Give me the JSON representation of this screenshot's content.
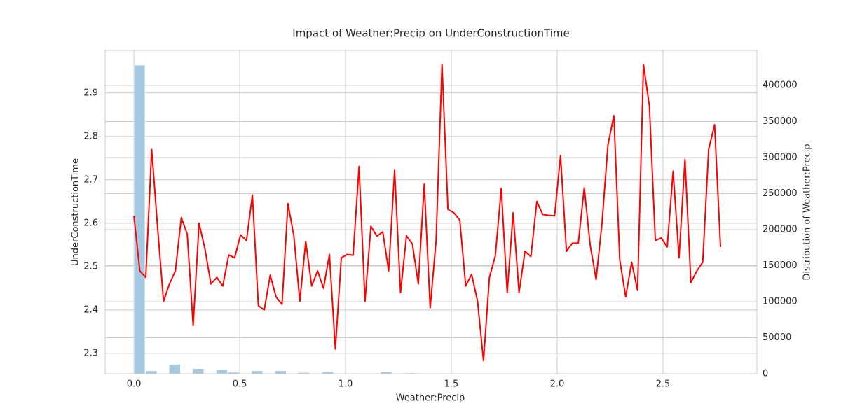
{
  "chart_data": {
    "type": "line",
    "title": "Impact of Weather:Precip on UnderConstructionTime",
    "xlabel": "Weather:Precip",
    "ylabel": "UnderConstructionTime",
    "y2label": "Distribution of Weather:Precip",
    "color": "#ff0000",
    "x": [
      0,
      0.028,
      0.056,
      0.084,
      0.112,
      0.14,
      0.168,
      0.196,
      0.224,
      0.252,
      0.28,
      0.308,
      0.336,
      0.364,
      0.392,
      0.42,
      0.448,
      0.476,
      0.504,
      0.532,
      0.56,
      0.588,
      0.616,
      0.644,
      0.672,
      0.7,
      0.728,
      0.756,
      0.784,
      0.812,
      0.84,
      0.868,
      0.896,
      0.924,
      0.952,
      0.98,
      1.008,
      1.036,
      1.064,
      1.092,
      1.12,
      1.148,
      1.176,
      1.204,
      1.232,
      1.26,
      1.288,
      1.316,
      1.344,
      1.372,
      1.4,
      1.428,
      1.456,
      1.484,
      1.512,
      1.54,
      1.568,
      1.596,
      1.624,
      1.652,
      1.68,
      1.708,
      1.736,
      1.764,
      1.792,
      1.82,
      1.848,
      1.876,
      1.904,
      1.932,
      1.96,
      1.988,
      2.016,
      2.044,
      2.072,
      2.1,
      2.128,
      2.156,
      2.184,
      2.212,
      2.24,
      2.268,
      2.296,
      2.324,
      2.352,
      2.38,
      2.408,
      2.436,
      2.464,
      2.492,
      2.52,
      2.548,
      2.576,
      2.604,
      2.632,
      2.66,
      2.688,
      2.716,
      2.744,
      2.772
    ],
    "values": [
      2.617,
      2.49,
      2.475,
      2.77,
      2.59,
      2.42,
      2.46,
      2.49,
      2.613,
      2.575,
      2.364,
      2.6,
      2.54,
      2.46,
      2.475,
      2.455,
      2.527,
      2.52,
      2.573,
      2.56,
      2.665,
      2.41,
      2.4,
      2.48,
      2.43,
      2.413,
      2.645,
      2.57,
      2.42,
      2.558,
      2.455,
      2.49,
      2.45,
      2.528,
      2.31,
      2.52,
      2.528,
      2.526,
      2.731,
      2.42,
      2.593,
      2.57,
      2.58,
      2.49,
      2.722,
      2.44,
      2.571,
      2.552,
      2.46,
      2.69,
      2.405,
      2.56,
      2.965,
      2.632,
      2.624,
      2.607,
      2.455,
      2.482,
      2.42,
      2.283,
      2.475,
      2.525,
      2.68,
      2.44,
      2.624,
      2.44,
      2.535,
      2.523,
      2.65,
      2.62,
      2.618,
      2.617,
      2.756,
      2.535,
      2.554,
      2.554,
      2.682,
      2.55,
      2.47,
      2.6,
      2.78,
      2.848,
      2.515,
      2.43,
      2.51,
      2.445,
      2.965,
      2.87,
      2.56,
      2.566,
      2.545,
      2.72,
      2.52,
      2.747,
      2.463,
      2.49,
      2.51,
      2.77,
      2.827,
      2.545
    ],
    "histogram": {
      "type": "histogram",
      "axis": "y2",
      "color": "#a5c8e1",
      "bins": [
        0,
        0.0556,
        0.1112,
        0.1668,
        0.2224,
        0.278,
        0.3336,
        0.3892,
        0.4448,
        0.5004,
        0.556,
        0.6116,
        0.6672,
        0.7228,
        0.7784,
        0.834,
        0.8896,
        0.9452,
        1.0008,
        1.0564,
        1.112,
        1.1676,
        1.2232,
        1.2788,
        1.3344,
        1.39,
        1.4456,
        1.5012,
        1.5568,
        1.6124,
        1.668,
        1.7236,
        1.7792,
        1.8348,
        1.8904,
        1.946,
        2.0016,
        2.0572,
        2.1128,
        2.1684,
        2.224,
        2.2796,
        2.3352,
        2.3908,
        2.4464,
        2.502,
        2.5576,
        2.6132,
        2.6688,
        2.7244,
        2.78
      ],
      "counts": [
        428000,
        4000,
        0,
        13000,
        0,
        7000,
        0,
        6000,
        2000,
        0,
        4000,
        0,
        4000,
        0,
        1500,
        0,
        2500,
        0,
        500,
        500,
        0,
        2500,
        0,
        1000,
        0,
        300,
        0,
        200,
        0,
        300,
        0,
        200,
        0,
        100,
        0,
        200,
        0,
        100,
        0,
        500,
        0,
        0,
        300,
        0,
        0,
        200,
        0,
        100,
        0,
        100
      ]
    },
    "xlim": [
      -0.136,
      2.944
    ],
    "ylim": [
      2.253,
      2.998
    ],
    "y2lim": [
      0,
      448500
    ],
    "xticks": [
      {
        "value": 0,
        "label": "0.0"
      },
      0.5,
      {
        "value": 1,
        "label": "1.0"
      },
      1.5,
      {
        "value": 2,
        "label": "2.0"
      },
      2.5
    ],
    "yticks": [
      2.3,
      2.4,
      2.5,
      2.6,
      2.7,
      2.8,
      2.9
    ],
    "y2ticks": [
      0,
      50000,
      100000,
      150000,
      200000,
      250000,
      300000,
      350000,
      400000
    ],
    "grid": true
  }
}
